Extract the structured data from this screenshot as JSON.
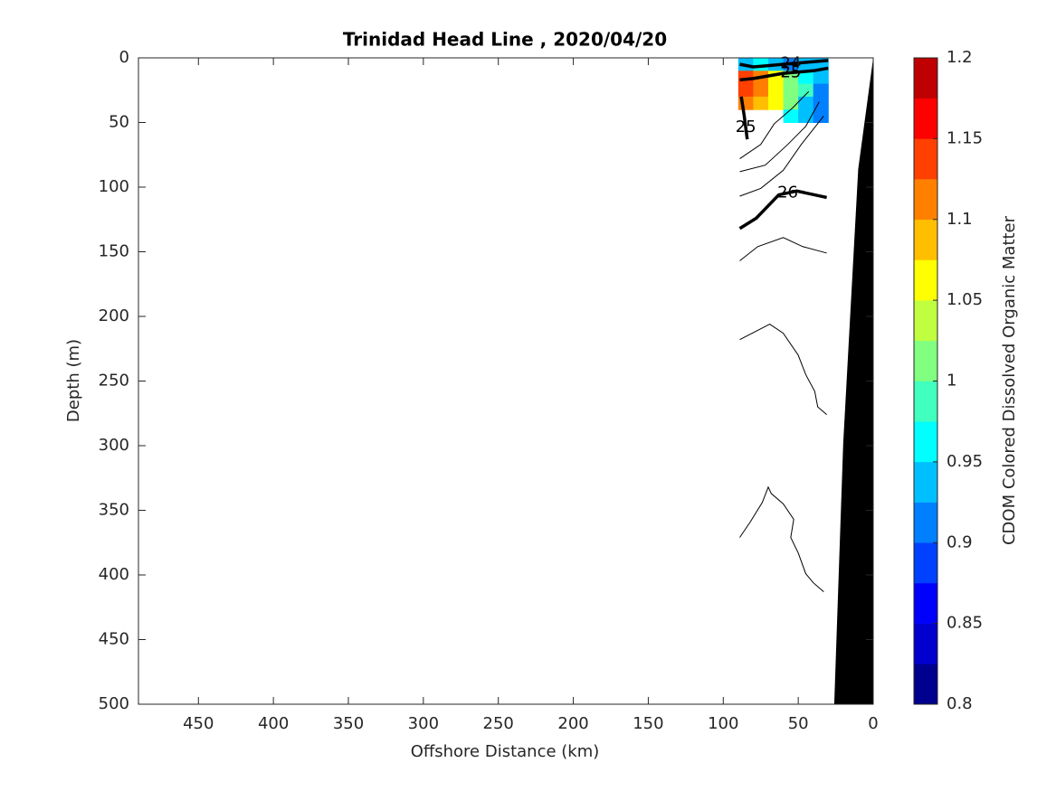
{
  "chart_data": {
    "type": "contour",
    "title": "Trinidad Head Line , 2020/04/20",
    "xlabel": "Offshore Distance (km)",
    "ylabel": "Depth (m)",
    "colorbar_label": "CDOM Colored Dissolved Organic Matter",
    "xlim": [
      490,
      0
    ],
    "xticks": [
      450,
      400,
      350,
      300,
      250,
      200,
      150,
      100,
      50,
      0
    ],
    "ylim": [
      0,
      500
    ],
    "yticks": [
      0,
      50,
      100,
      150,
      200,
      250,
      300,
      350,
      400,
      450,
      500
    ],
    "clim": [
      0.8,
      1.2
    ],
    "cticks": [
      0.8,
      0.85,
      0.9,
      0.95,
      1,
      1.05,
      1.1,
      1.15,
      1.2
    ],
    "colors": [
      "#00008f",
      "#0000cf",
      "#0000ff",
      "#0040ff",
      "#0080ff",
      "#00bfff",
      "#00ffff",
      "#40ffbf",
      "#80ff80",
      "#bfff40",
      "#ffff00",
      "#ffbf00",
      "#ff8000",
      "#ff4000",
      "#ff0000",
      "#bf0000"
    ],
    "field": {
      "x": [
        85,
        75,
        65,
        55,
        45,
        35
      ],
      "y": [
        5,
        15,
        25,
        35,
        45
      ],
      "z": [
        [
          0.95,
          0.97,
          0.93,
          0.92,
          0.95,
          0.93
        ],
        [
          1.15,
          1.12,
          1.07,
          1.0,
          0.97,
          0.95
        ],
        [
          1.13,
          1.1,
          1.05,
          1.02,
          0.98,
          0.92
        ],
        [
          1.12,
          1.08,
          1.05,
          1.0,
          0.95,
          0.9
        ],
        [
          null,
          null,
          null,
          0.97,
          0.93,
          0.9
        ]
      ]
    },
    "contours": [
      {
        "x": [
          89,
          82,
          74,
          70,
          68,
          60,
          53,
          55,
          50,
          45,
          40,
          33
        ],
        "y": [
          371,
          359,
          344,
          332,
          337,
          345,
          357,
          371,
          383,
          399,
          406,
          413
        ]
      },
      {
        "x": [
          89,
          69,
          60,
          50,
          45,
          39,
          37,
          31
        ],
        "y": [
          218,
          206,
          213,
          230,
          245,
          258,
          270,
          276
        ]
      },
      {
        "x": [
          89,
          77,
          60,
          47,
          31
        ],
        "y": [
          157,
          146,
          139,
          146,
          151
        ]
      },
      {
        "x": [
          89,
          78,
          63,
          51,
          31
        ],
        "y": [
          132,
          124,
          106,
          103,
          108
        ],
        "label": 26,
        "bold": true
      },
      {
        "x": [
          89,
          75,
          60,
          48,
          33
        ],
        "y": [
          107,
          101,
          87,
          67,
          45
        ]
      },
      {
        "x": [
          89,
          72,
          57,
          45,
          36
        ],
        "y": [
          88,
          83,
          67,
          53,
          34
        ]
      },
      {
        "x": [
          89,
          75,
          66,
          54,
          43
        ],
        "y": [
          78,
          67,
          51,
          39,
          26
        ]
      },
      {
        "x": [
          88,
          86,
          84
        ],
        "y": [
          30,
          45,
          63
        ],
        "label": 25,
        "bold": true
      },
      {
        "x": [
          89,
          80,
          70,
          60,
          50,
          40,
          30
        ],
        "y": [
          17,
          16,
          14,
          12,
          11,
          10,
          8
        ],
        "label": 25,
        "bold": true
      },
      {
        "x": [
          89,
          80,
          70,
          60,
          50,
          40,
          30
        ],
        "y": [
          5,
          7,
          6,
          5,
          4,
          3,
          2
        ],
        "label": 24,
        "bold": true
      }
    ],
    "bottom": {
      "x": [
        0,
        10,
        20,
        26
      ],
      "y": [
        0,
        86,
        298,
        500
      ]
    }
  }
}
